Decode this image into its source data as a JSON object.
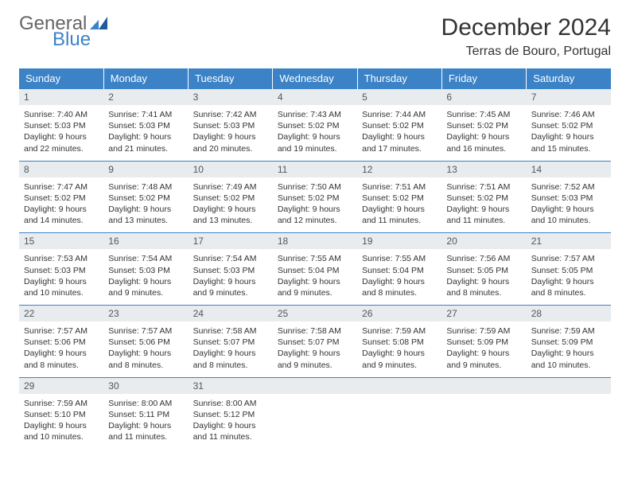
{
  "logo": {
    "word1": "General",
    "word2": "Blue"
  },
  "title": "December 2024",
  "location": "Terras de Bouro, Portugal",
  "colors": {
    "header_bg": "#3b82c7",
    "header_text": "#ffffff",
    "daynum_bg": "#e8ecef",
    "border": "#3b82c7",
    "body_text": "#333333"
  },
  "weekdays": [
    "Sunday",
    "Monday",
    "Tuesday",
    "Wednesday",
    "Thursday",
    "Friday",
    "Saturday"
  ],
  "weeks": [
    [
      {
        "n": "1",
        "sr": "7:40 AM",
        "ss": "5:03 PM",
        "dl": "9 hours and 22 minutes."
      },
      {
        "n": "2",
        "sr": "7:41 AM",
        "ss": "5:03 PM",
        "dl": "9 hours and 21 minutes."
      },
      {
        "n": "3",
        "sr": "7:42 AM",
        "ss": "5:03 PM",
        "dl": "9 hours and 20 minutes."
      },
      {
        "n": "4",
        "sr": "7:43 AM",
        "ss": "5:02 PM",
        "dl": "9 hours and 19 minutes."
      },
      {
        "n": "5",
        "sr": "7:44 AM",
        "ss": "5:02 PM",
        "dl": "9 hours and 17 minutes."
      },
      {
        "n": "6",
        "sr": "7:45 AM",
        "ss": "5:02 PM",
        "dl": "9 hours and 16 minutes."
      },
      {
        "n": "7",
        "sr": "7:46 AM",
        "ss": "5:02 PM",
        "dl": "9 hours and 15 minutes."
      }
    ],
    [
      {
        "n": "8",
        "sr": "7:47 AM",
        "ss": "5:02 PM",
        "dl": "9 hours and 14 minutes."
      },
      {
        "n": "9",
        "sr": "7:48 AM",
        "ss": "5:02 PM",
        "dl": "9 hours and 13 minutes."
      },
      {
        "n": "10",
        "sr": "7:49 AM",
        "ss": "5:02 PM",
        "dl": "9 hours and 13 minutes."
      },
      {
        "n": "11",
        "sr": "7:50 AM",
        "ss": "5:02 PM",
        "dl": "9 hours and 12 minutes."
      },
      {
        "n": "12",
        "sr": "7:51 AM",
        "ss": "5:02 PM",
        "dl": "9 hours and 11 minutes."
      },
      {
        "n": "13",
        "sr": "7:51 AM",
        "ss": "5:02 PM",
        "dl": "9 hours and 11 minutes."
      },
      {
        "n": "14",
        "sr": "7:52 AM",
        "ss": "5:03 PM",
        "dl": "9 hours and 10 minutes."
      }
    ],
    [
      {
        "n": "15",
        "sr": "7:53 AM",
        "ss": "5:03 PM",
        "dl": "9 hours and 10 minutes."
      },
      {
        "n": "16",
        "sr": "7:54 AM",
        "ss": "5:03 PM",
        "dl": "9 hours and 9 minutes."
      },
      {
        "n": "17",
        "sr": "7:54 AM",
        "ss": "5:03 PM",
        "dl": "9 hours and 9 minutes."
      },
      {
        "n": "18",
        "sr": "7:55 AM",
        "ss": "5:04 PM",
        "dl": "9 hours and 9 minutes."
      },
      {
        "n": "19",
        "sr": "7:55 AM",
        "ss": "5:04 PM",
        "dl": "9 hours and 8 minutes."
      },
      {
        "n": "20",
        "sr": "7:56 AM",
        "ss": "5:05 PM",
        "dl": "9 hours and 8 minutes."
      },
      {
        "n": "21",
        "sr": "7:57 AM",
        "ss": "5:05 PM",
        "dl": "9 hours and 8 minutes."
      }
    ],
    [
      {
        "n": "22",
        "sr": "7:57 AM",
        "ss": "5:06 PM",
        "dl": "9 hours and 8 minutes."
      },
      {
        "n": "23",
        "sr": "7:57 AM",
        "ss": "5:06 PM",
        "dl": "9 hours and 8 minutes."
      },
      {
        "n": "24",
        "sr": "7:58 AM",
        "ss": "5:07 PM",
        "dl": "9 hours and 8 minutes."
      },
      {
        "n": "25",
        "sr": "7:58 AM",
        "ss": "5:07 PM",
        "dl": "9 hours and 9 minutes."
      },
      {
        "n": "26",
        "sr": "7:59 AM",
        "ss": "5:08 PM",
        "dl": "9 hours and 9 minutes."
      },
      {
        "n": "27",
        "sr": "7:59 AM",
        "ss": "5:09 PM",
        "dl": "9 hours and 9 minutes."
      },
      {
        "n": "28",
        "sr": "7:59 AM",
        "ss": "5:09 PM",
        "dl": "9 hours and 10 minutes."
      }
    ],
    [
      {
        "n": "29",
        "sr": "7:59 AM",
        "ss": "5:10 PM",
        "dl": "9 hours and 10 minutes."
      },
      {
        "n": "30",
        "sr": "8:00 AM",
        "ss": "5:11 PM",
        "dl": "9 hours and 11 minutes."
      },
      {
        "n": "31",
        "sr": "8:00 AM",
        "ss": "5:12 PM",
        "dl": "9 hours and 11 minutes."
      },
      null,
      null,
      null,
      null
    ]
  ],
  "labels": {
    "sunrise": "Sunrise:",
    "sunset": "Sunset:",
    "daylight": "Daylight:"
  }
}
